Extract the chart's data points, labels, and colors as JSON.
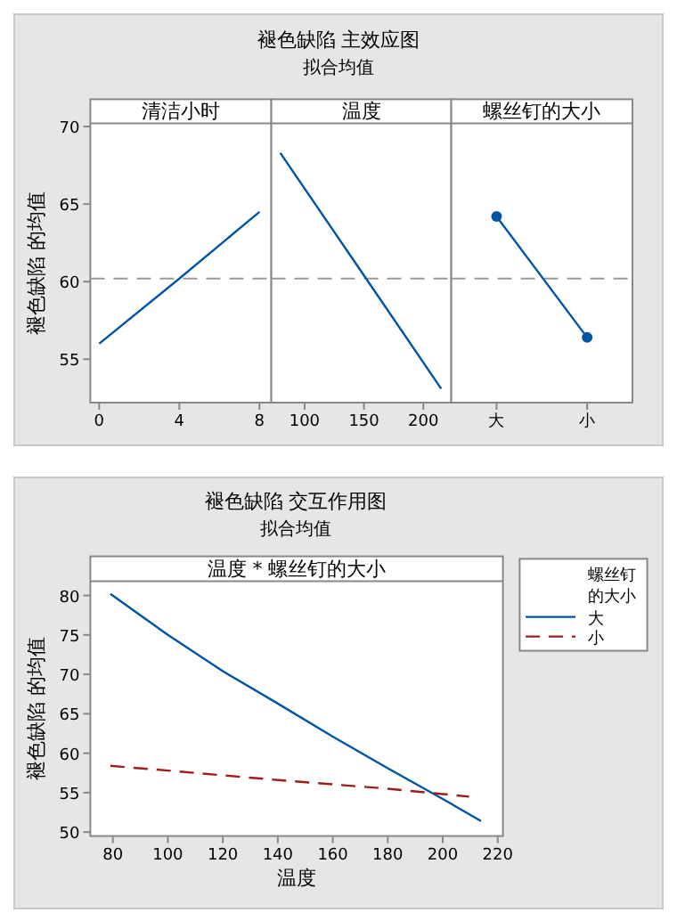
{
  "chart_data": [
    {
      "type": "line",
      "title": "清洁小时",
      "annotations": [
        "褪色缺陷 主效应图",
        "拟合均值"
      ],
      "ylabel": "褪色缺陷 的均值",
      "x": [
        0,
        4,
        8
      ],
      "xlim": [
        -0.44,
        8.59
      ],
      "xticks": [
        0,
        4,
        8
      ],
      "ylim": [
        52.2,
        70.2
      ],
      "yticks": [
        55,
        60,
        65,
        70
      ],
      "series": [
        {
          "color": "#0054a6",
          "values": [
            56,
            60.2,
            64.5
          ]
        }
      ],
      "ref_lines": [
        {
          "axis": "y",
          "value": 60.2,
          "color": "#999999",
          "line_style": "dashed"
        }
      ]
    },
    {
      "type": "line",
      "title": "温度",
      "x": [
        79.5,
        150,
        215
      ],
      "xlim": [
        72,
        223.5
      ],
      "xticks": [
        100,
        150,
        200
      ],
      "ylim": [
        52.2,
        70.2
      ],
      "yticks": [
        55,
        60,
        65,
        70
      ],
      "tick_labels": "x",
      "series": [
        {
          "color": "#0054a6",
          "values": [
            68.3,
            60.4,
            53.1
          ]
        }
      ],
      "ref_lines": [
        {
          "axis": "y",
          "value": 60.2,
          "color": "#999999",
          "line_style": "dashed"
        }
      ]
    },
    {
      "type": "line",
      "title": "螺丝钉的大小",
      "categories": [
        "大",
        "小"
      ],
      "ylim": [
        52.2,
        70.2
      ],
      "yticks": [
        55,
        60,
        65,
        70
      ],
      "tick_labels": "x",
      "marker": "circle",
      "series": [
        {
          "color": "#0054a6",
          "values": [
            64.2,
            56.4
          ]
        }
      ],
      "ref_lines": [
        {
          "axis": "y",
          "value": 60.2,
          "color": "#999999",
          "line_style": "dashed"
        }
      ]
    },
    {
      "type": "line",
      "title": "温度 * 螺丝钉的大小",
      "annotations": [
        "褪色缺陷 交互作用图",
        "拟合均值"
      ],
      "xlabel": "温度",
      "ylabel": "褪色缺陷 的均值",
      "legend_title": "螺丝钉的大小",
      "legend": "right",
      "xlim": [
        71.8,
        221.9
      ],
      "xticks": [
        80,
        100,
        120,
        140,
        160,
        180,
        200,
        220
      ],
      "ylim": [
        49.5,
        81.8
      ],
      "yticks": [
        50,
        55,
        60,
        65,
        70,
        75,
        80
      ],
      "series": [
        {
          "name": "大",
          "color": "#0054a6",
          "line_style": "solid",
          "x": [
            79.1,
            100,
            120,
            140,
            160,
            180,
            200,
            213.9
          ],
          "values": [
            80.2,
            75,
            70.4,
            66.3,
            62.1,
            58.1,
            54.2,
            51.4
          ]
        },
        {
          "name": "小",
          "color": "#a01c1c",
          "line_style": "dashed",
          "x": [
            79.1,
            100,
            140,
            180,
            209.6
          ],
          "values": [
            58.4,
            57.8,
            56.6,
            55.5,
            54.5
          ]
        }
      ]
    }
  ]
}
